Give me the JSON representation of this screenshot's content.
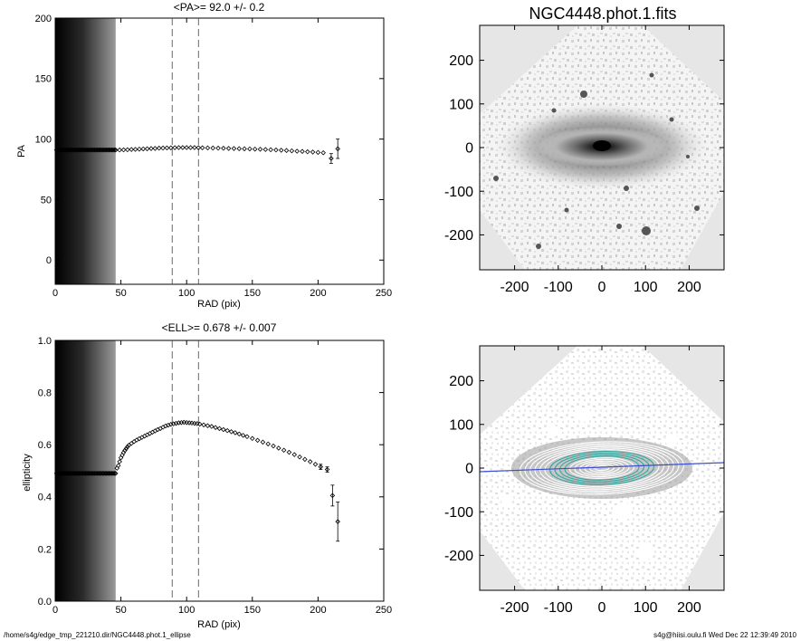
{
  "page": {
    "footer_left": "/home/s4g/edge_tmp_221210.dir/NGC4448.phot.1_ellipse",
    "footer_right": "s4g@hiisi.oulu.fi  Wed Dec 22 12:39:49 2010"
  },
  "chart_data": [
    {
      "id": "pa_profile",
      "type": "scatter",
      "title": "<PA>=  92.0 +/-   0.2",
      "xlabel": "RAD (pix)",
      "ylabel": "PA",
      "xlim": [
        0,
        250
      ],
      "ylim": [
        -20,
        200
      ],
      "xticks": [
        0,
        50,
        100,
        150,
        200,
        250
      ],
      "yticks": [
        0,
        50,
        100,
        150,
        200
      ],
      "grid": false,
      "shaded_band_x": [
        0,
        46
      ],
      "vlines": [
        89,
        109
      ],
      "series": [
        {
          "x": [
            1,
            2,
            3,
            4,
            5,
            6,
            7,
            8,
            9,
            10,
            11,
            12,
            13,
            14,
            15,
            16,
            17,
            18,
            19,
            20,
            21,
            22,
            23,
            24,
            25,
            26,
            27,
            28,
            29,
            30,
            31,
            32,
            33,
            34,
            35,
            36,
            37,
            38,
            39,
            40,
            41,
            42,
            43,
            44,
            45,
            46,
            49,
            52,
            55,
            58,
            61,
            64,
            67,
            70,
            73,
            76,
            79,
            82,
            85,
            88,
            91,
            94,
            97,
            100,
            103,
            106,
            109,
            112,
            116,
            120,
            124,
            128,
            132,
            136,
            140,
            144,
            148,
            152,
            156,
            160,
            164,
            168,
            172,
            176,
            180,
            184,
            188,
            192,
            196,
            200,
            204,
            210,
            215
          ],
          "y": [
            91,
            91,
            91,
            91,
            91,
            91,
            91,
            91,
            91,
            91,
            91,
            91,
            91,
            91,
            91,
            91,
            91,
            91,
            91,
            91,
            91,
            91,
            91,
            91,
            91,
            91,
            91,
            91,
            91,
            91,
            91,
            91,
            91,
            91,
            91,
            91,
            91,
            91,
            91,
            91,
            91,
            91,
            91,
            91,
            91,
            91,
            91,
            91.1,
            91.2,
            91.4,
            91.5,
            91.7,
            91.9,
            92.0,
            92.2,
            92.3,
            92.5,
            92.6,
            92.7,
            92.8,
            92.9,
            93.0,
            93.0,
            93.0,
            93.0,
            93.0,
            92.9,
            92.8,
            92.7,
            92.6,
            92.5,
            92.4,
            92.3,
            92.2,
            92.1,
            92.0,
            91.9,
            91.7,
            91.6,
            91.4,
            91.2,
            91.0,
            90.8,
            90.6,
            90.3,
            90.0,
            89.8,
            89.5,
            89.3,
            89.0,
            88.7,
            84.0,
            92.0
          ],
          "err": [
            0,
            0,
            0,
            0,
            0,
            0,
            0,
            0,
            0,
            0,
            0,
            0,
            0,
            0,
            0,
            0,
            0,
            0,
            0,
            0,
            0,
            0,
            0,
            0,
            0,
            0,
            0,
            0,
            0,
            0,
            0,
            0,
            0,
            0,
            0,
            0,
            0,
            0,
            0,
            0,
            0,
            0,
            0,
            0,
            0,
            0,
            0,
            0,
            0,
            0,
            0,
            0,
            0,
            0,
            0,
            0,
            0,
            0,
            0,
            0,
            0,
            0,
            0,
            0,
            0,
            0,
            0,
            0,
            0,
            0,
            0,
            0,
            0,
            0,
            0,
            0,
            0,
            0,
            0,
            0,
            0,
            0,
            0,
            0,
            0,
            0,
            0,
            0,
            0,
            0,
            0,
            4,
            8
          ]
        }
      ]
    },
    {
      "id": "ell_profile",
      "type": "scatter",
      "title": "<ELL>= 0.678 +/-  0.007",
      "xlabel": "RAD (pix)",
      "ylabel": "ellipticity",
      "xlim": [
        0,
        250
      ],
      "ylim": [
        0,
        1
      ],
      "xticks": [
        0,
        50,
        100,
        150,
        200,
        250
      ],
      "yticks": [
        0.0,
        0.2,
        0.4,
        0.6,
        0.8,
        1.0
      ],
      "ytick_labels": [
        "0.0",
        "0.2",
        "0.4",
        "0.6",
        "0.8",
        "1.0"
      ],
      "grid": false,
      "shaded_band_x": [
        0,
        46
      ],
      "vlines": [
        89,
        109
      ],
      "series": [
        {
          "x": [
            1,
            2,
            3,
            4,
            5,
            6,
            7,
            8,
            9,
            10,
            11,
            12,
            13,
            14,
            15,
            16,
            17,
            18,
            19,
            20,
            21,
            22,
            23,
            24,
            25,
            26,
            27,
            28,
            29,
            30,
            31,
            32,
            33,
            34,
            35,
            36,
            37,
            38,
            39,
            40,
            41,
            42,
            43,
            44,
            45,
            46,
            47,
            48,
            49,
            50,
            51,
            52,
            53,
            54,
            55,
            56,
            58,
            60,
            62,
            64,
            66,
            68,
            70,
            72,
            74,
            76,
            78,
            80,
            82,
            84,
            86,
            88,
            90,
            92,
            94,
            96,
            98,
            100,
            102,
            104,
            106,
            108,
            110,
            113,
            116,
            119,
            122,
            125,
            128,
            131,
            134,
            137,
            140,
            143,
            146,
            150,
            154,
            158,
            162,
            166,
            170,
            174,
            178,
            182,
            186,
            190,
            194,
            198,
            202,
            207,
            211,
            215
          ],
          "y": [
            0.49,
            0.49,
            0.49,
            0.49,
            0.49,
            0.49,
            0.49,
            0.49,
            0.49,
            0.49,
            0.49,
            0.49,
            0.49,
            0.49,
            0.49,
            0.49,
            0.49,
            0.49,
            0.49,
            0.49,
            0.49,
            0.49,
            0.49,
            0.49,
            0.49,
            0.49,
            0.49,
            0.49,
            0.49,
            0.49,
            0.49,
            0.49,
            0.49,
            0.49,
            0.49,
            0.49,
            0.49,
            0.49,
            0.49,
            0.49,
            0.49,
            0.49,
            0.49,
            0.49,
            0.49,
            0.49,
            0.51,
            0.52,
            0.535,
            0.55,
            0.56,
            0.57,
            0.578,
            0.585,
            0.592,
            0.598,
            0.605,
            0.612,
            0.618,
            0.623,
            0.628,
            0.633,
            0.638,
            0.643,
            0.648,
            0.653,
            0.658,
            0.662,
            0.667,
            0.672,
            0.675,
            0.678,
            0.68,
            0.682,
            0.684,
            0.685,
            0.686,
            0.685,
            0.684,
            0.683,
            0.682,
            0.681,
            0.679,
            0.676,
            0.673,
            0.67,
            0.666,
            0.662,
            0.658,
            0.654,
            0.65,
            0.646,
            0.641,
            0.636,
            0.631,
            0.624,
            0.617,
            0.61,
            0.603,
            0.595,
            0.587,
            0.579,
            0.571,
            0.562,
            0.553,
            0.544,
            0.535,
            0.525,
            0.515,
            0.505,
            0.405,
            0.305
          ],
          "err": [
            0,
            0,
            0,
            0,
            0,
            0,
            0,
            0,
            0,
            0,
            0,
            0,
            0,
            0,
            0,
            0,
            0,
            0,
            0,
            0,
            0,
            0,
            0,
            0,
            0,
            0,
            0,
            0,
            0,
            0,
            0,
            0,
            0,
            0,
            0,
            0,
            0,
            0,
            0,
            0,
            0,
            0,
            0,
            0,
            0,
            0,
            0,
            0,
            0,
            0,
            0,
            0,
            0,
            0,
            0,
            0,
            0,
            0,
            0,
            0,
            0,
            0,
            0,
            0,
            0,
            0,
            0,
            0,
            0,
            0,
            0,
            0,
            0,
            0,
            0,
            0,
            0,
            0,
            0,
            0,
            0,
            0,
            0,
            0,
            0,
            0,
            0,
            0,
            0,
            0,
            0,
            0,
            0,
            0,
            0,
            0,
            0,
            0,
            0,
            0,
            0,
            0,
            0,
            0,
            0,
            0,
            0,
            0,
            0.01,
            0.01,
            0.04,
            0.075
          ]
        }
      ]
    },
    {
      "id": "galaxy_image",
      "type": "heatmap",
      "title": "NGC4448.phot.1.fits",
      "xlim": [
        -280,
        280
      ],
      "ylim": [
        -280,
        280
      ],
      "xticks": [
        -200,
        -100,
        0,
        100,
        200
      ],
      "yticks": [
        -200,
        -100,
        0,
        100,
        200
      ],
      "colormap": "inverted grayscale"
    },
    {
      "id": "isophote_image",
      "type": "heatmap",
      "xlim": [
        -280,
        280
      ],
      "ylim": [
        -280,
        280
      ],
      "xticks": [
        -200,
        -100,
        0,
        100,
        200
      ],
      "yticks": [
        -200,
        -100,
        0,
        100,
        200
      ],
      "overlay": "elliptical isophote contours",
      "pa_line_color": "#3c4fd0",
      "contour_highlight_color": "#3aa6a0"
    }
  ]
}
